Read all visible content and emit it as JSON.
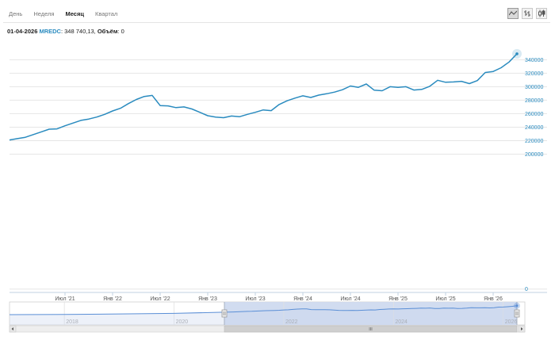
{
  "tabs": [
    {
      "label": "День",
      "active": false
    },
    {
      "label": "Неделя",
      "active": false
    },
    {
      "label": "Месяц",
      "active": true
    },
    {
      "label": "Квартал",
      "active": false
    }
  ],
  "chart_type_buttons": [
    {
      "icon": "line-chart-icon",
      "active": true
    },
    {
      "icon": "ohlc-chart-icon",
      "active": false
    },
    {
      "icon": "candlestick-chart-icon",
      "active": false
    }
  ],
  "info": {
    "date": "01-04-2026",
    "ticker": "MREDC",
    "value_text": ": 348 740,13, ",
    "volume_label": "Объём",
    "volume_value": ": 0"
  },
  "colors": {
    "line": "#2a8bbf",
    "axis_text": "#2a8bbf",
    "navigator_fill": "#ccd8ee",
    "navigator_line": "#5b8fd6"
  },
  "chart_data": {
    "type": "line",
    "series": [
      {
        "name": "MREDC",
        "x": [
          "2020-12",
          "2021-01",
          "2021-02",
          "2021-03",
          "2021-04",
          "2021-05",
          "2021-06",
          "2021-07",
          "2021-08",
          "2021-09",
          "2021-10",
          "2021-11",
          "2021-12",
          "2022-01",
          "2022-02",
          "2022-03",
          "2022-04",
          "2022-05",
          "2022-06",
          "2022-07",
          "2022-08",
          "2022-09",
          "2022-10",
          "2022-11",
          "2022-12",
          "2023-01",
          "2023-02",
          "2023-03",
          "2023-04",
          "2023-05",
          "2023-06",
          "2023-07",
          "2023-08",
          "2023-09",
          "2023-10",
          "2023-11",
          "2023-12",
          "2024-01",
          "2024-02",
          "2024-03",
          "2024-04",
          "2024-05",
          "2024-06",
          "2024-07",
          "2024-08",
          "2024-09",
          "2024-10",
          "2024-11",
          "2024-12",
          "2025-01",
          "2025-02",
          "2025-03",
          "2025-04",
          "2025-05",
          "2025-06",
          "2025-07",
          "2025-08",
          "2025-09",
          "2025-10",
          "2025-11",
          "2025-12",
          "2026-01",
          "2026-02",
          "2026-03",
          "2026-04"
        ],
        "values": [
          221000,
          223000,
          225000,
          229000,
          233000,
          237000,
          237500,
          242000,
          246000,
          250000,
          252000,
          255000,
          259000,
          264000,
          268000,
          275000,
          281000,
          285500,
          287000,
          272000,
          271500,
          269000,
          270000,
          267000,
          262000,
          257000,
          255000,
          254000,
          256500,
          255500,
          259000,
          262000,
          265500,
          264500,
          273500,
          279000,
          283000,
          286500,
          284000,
          287500,
          289500,
          292000,
          295500,
          301000,
          299000,
          304000,
          294800,
          294000,
          300000,
          299000,
          300000,
          295000,
          296000,
          300500,
          309500,
          306500,
          307000,
          308000,
          304500,
          309000,
          321000,
          322500,
          328000,
          336500,
          348740.13
        ]
      }
    ],
    "ylim": [
      -5000,
      358000
    ],
    "yticks": [
      0,
      200000,
      220000,
      240000,
      260000,
      280000,
      300000,
      320000,
      340000
    ],
    "xtick_labels": [
      "Июл '21",
      "Янв '22",
      "Июл '22",
      "Янв '23",
      "Июл '23",
      "Янв '24",
      "Июл '24",
      "Янв '25",
      "Июл '25",
      "Янв '26"
    ],
    "xtick_months": [
      "2021-07",
      "2022-01",
      "2022-07",
      "2023-01",
      "2023-07",
      "2024-01",
      "2024-07",
      "2025-01",
      "2025-07",
      "2026-01"
    ],
    "grid": true,
    "navigator": {
      "labels": [
        "2018",
        "2020",
        "2022",
        "2024",
        "2026"
      ],
      "label_months": [
        "2018-01",
        "2020-01",
        "2022-01",
        "2024-01",
        "2026-01"
      ],
      "range_start": "2017-01",
      "range_end": "2026-04",
      "selection_start": "2020-12",
      "selection_end": "2026-04",
      "history": {
        "x": [
          "2017-01",
          "2018-01",
          "2019-01",
          "2020-01",
          "2020-12"
        ],
        "values": [
          172000,
          176000,
          186000,
          198000,
          221000
        ]
      }
    }
  }
}
